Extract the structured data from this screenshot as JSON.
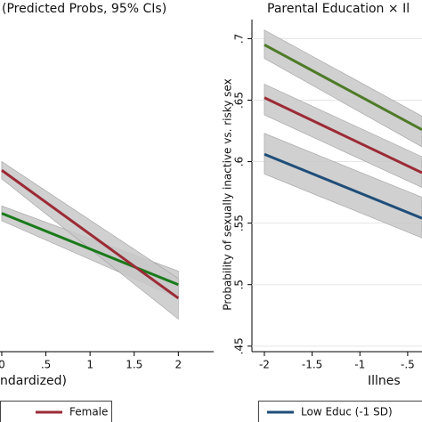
{
  "chart_data": [
    {
      "type": "line",
      "title": "(Predicted Probs, 95% CIs)",
      "x_label": "ndardized)",
      "x": [
        0,
        2
      ],
      "xlim": [
        -0.05,
        2.4
      ],
      "ylim": [
        0.4455,
        0.7155
      ],
      "xticks": [
        0,
        {
          "value": 0.5,
          "label": ".5"
        },
        1,
        1.5,
        2
      ],
      "series": [
        {
          "color": "#1a7a1a",
          "values": [
            0.558,
            0.5
          ],
          "lower": [
            0.552,
            0.489
          ],
          "upper": [
            0.564,
            0.511
          ]
        },
        {
          "name": "Female",
          "color": "#9b2b36",
          "values": [
            0.593,
            0.489
          ],
          "lower": [
            0.586,
            0.472
          ],
          "upper": [
            0.6,
            0.505
          ]
        }
      ]
    },
    {
      "type": "line",
      "title": "Parental Education × Il",
      "x_label": "Illnes",
      "y_label": "Probability of sexually inactive vs. risky sex",
      "x": [
        -2,
        -0.35
      ],
      "xlim": [
        -2.13,
        -0.35
      ],
      "ylim": [
        0.4455,
        0.7155
      ],
      "xticks": [
        -2,
        -1.5,
        -1,
        {
          "value": -0.5,
          "label": "-.5"
        }
      ],
      "yticks": [
        {
          "value": 0.45,
          "label": ".45"
        },
        {
          "value": 0.5,
          "label": ".5"
        },
        {
          "value": 0.55,
          "label": ".55"
        },
        {
          "value": 0.6,
          "label": ".6"
        },
        {
          "value": 0.65,
          "label": ".65"
        },
        {
          "value": 0.7,
          "label": ".7"
        }
      ],
      "series": [
        {
          "name": "Low Educ (-1 SD)",
          "color": "#1f4e79",
          "values": [
            0.606,
            0.554
          ],
          "lower": [
            0.59,
            0.538
          ],
          "upper": [
            0.623,
            0.571
          ]
        },
        {
          "color": "#9b2b36",
          "values": [
            0.652,
            0.591
          ],
          "lower": [
            0.638,
            0.579
          ],
          "upper": [
            0.663,
            0.604
          ]
        },
        {
          "color": "#4f7a28",
          "values": [
            0.695,
            0.626
          ],
          "lower": [
            0.684,
            0.612
          ],
          "upper": [
            0.707,
            0.637
          ]
        }
      ]
    }
  ]
}
